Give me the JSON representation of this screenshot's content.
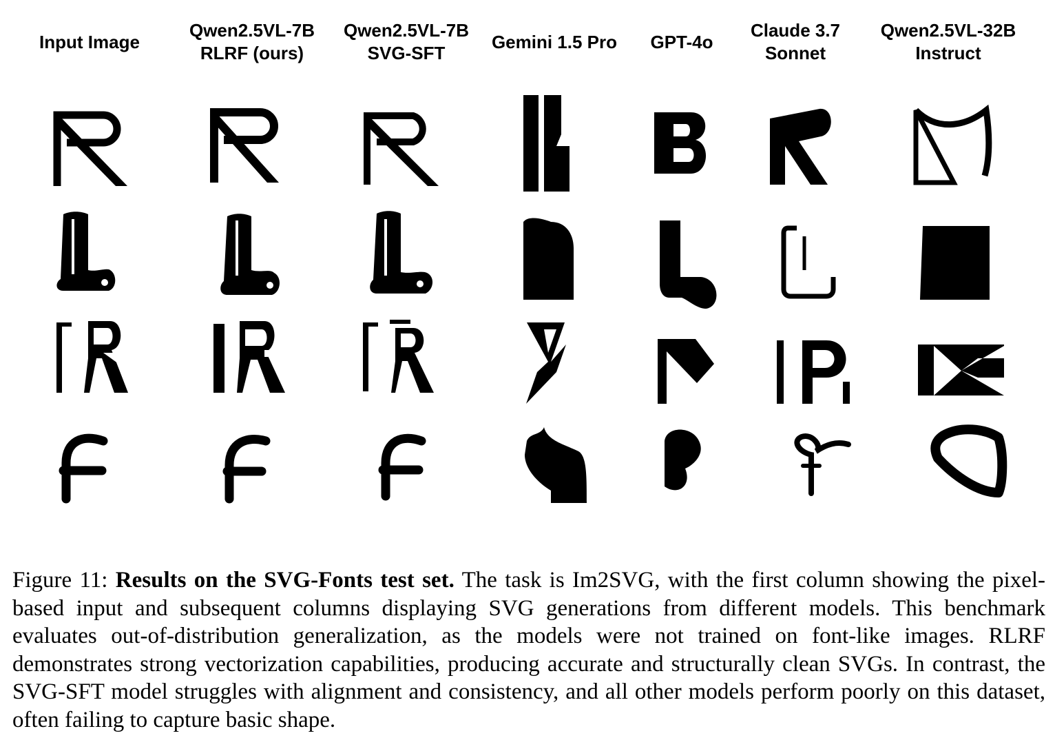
{
  "figure": {
    "columns": [
      {
        "line1": "Input Image",
        "line2": ""
      },
      {
        "line1": "Qwen2.5VL-7B",
        "line2": "RLRF (ours)"
      },
      {
        "line1": "Qwen2.5VL-7B",
        "line2": "SVG-SFT"
      },
      {
        "line1": "Gemini 1.5 Pro",
        "line2": ""
      },
      {
        "line1": "GPT-4o",
        "line2": ""
      },
      {
        "line1": "Claude 3.7",
        "line2": "Sonnet"
      },
      {
        "line1": "Qwen2.5VL-32B",
        "line2": "Instruct"
      }
    ],
    "rows": [
      "R",
      "L",
      "R-stencil",
      "f"
    ]
  },
  "caption": {
    "label": "Figure 11:",
    "title": "Results on the SVG-Fonts test set.",
    "body": "The task is Im2SVG, with the first column showing the pixel-based input and subsequent columns displaying SVG generations from different models. This benchmark evaluates out-of-distribution generalization, as the models were not trained on font-like images. RLRF demonstrates strong vectorization capabilities, producing accurate and structurally clean SVGs. In contrast, the SVG-SFT model struggles with alignment and consistency, and all other models perform poorly on this dataset, often failing to capture basic shape."
  }
}
